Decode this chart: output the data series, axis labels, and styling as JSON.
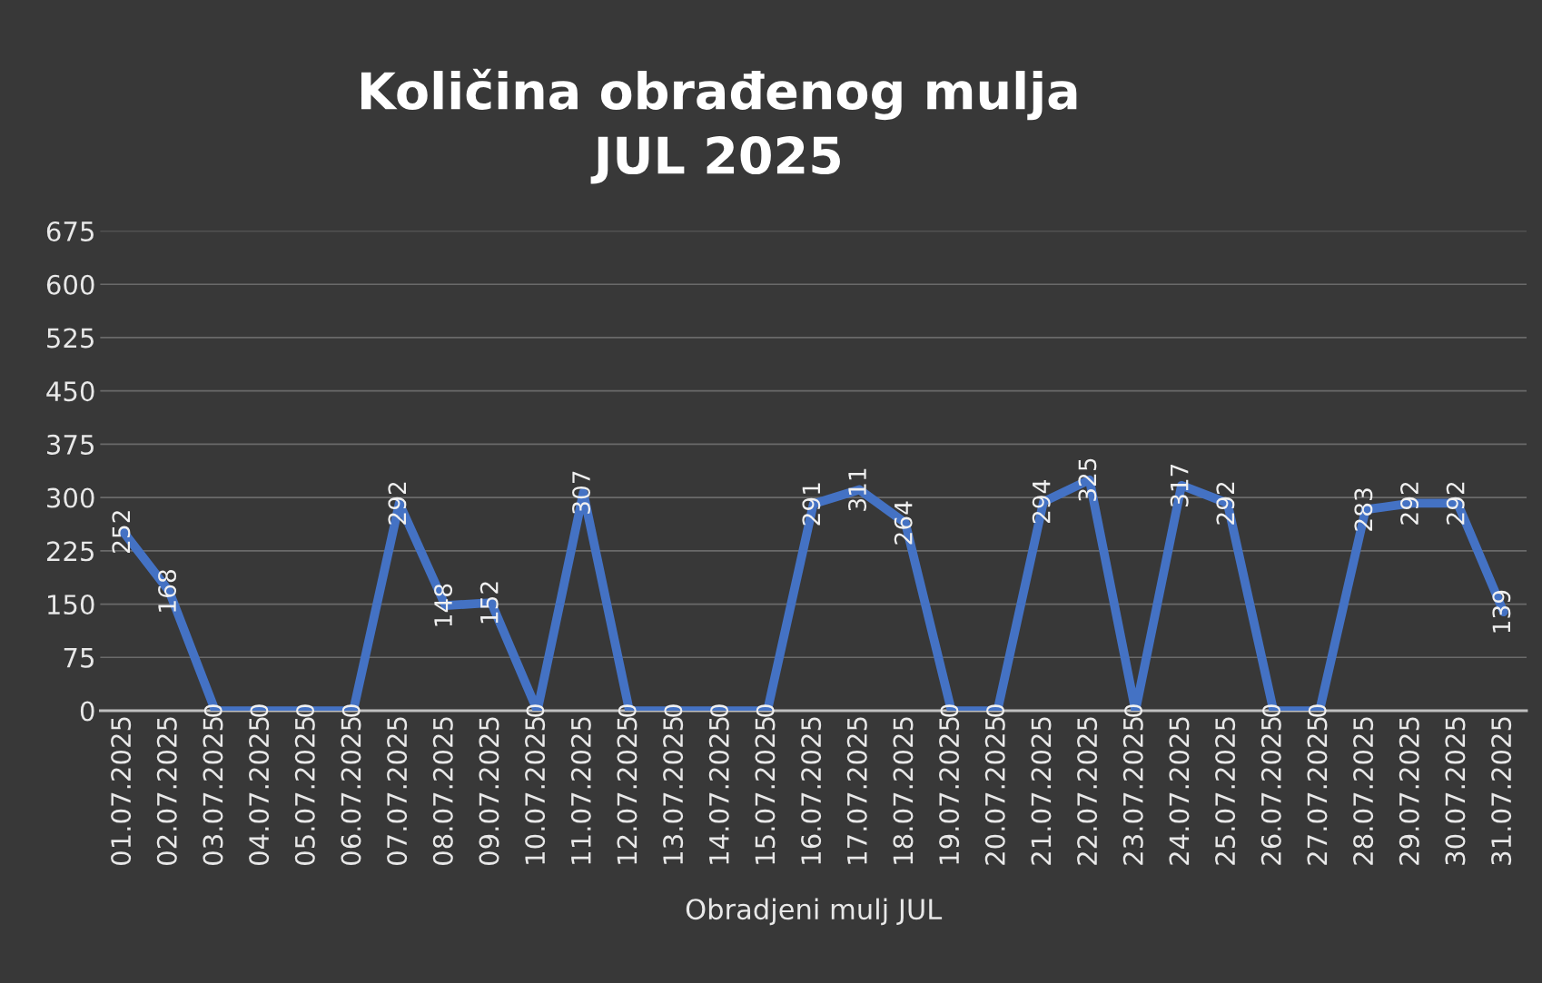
{
  "chart_data": {
    "type": "line",
    "title": "Količina obrađenog mulja\nJUL 2025",
    "xlabel": "Obradjeni mulj JUL",
    "categories": [
      "01.07.2025",
      "02.07.2025",
      "03.07.2025",
      "04.07.2025",
      "05.07.2025",
      "06.07.2025",
      "07.07.2025",
      "08.07.2025",
      "09.07.2025",
      "10.07.2025",
      "11.07.2025",
      "12.07.2025",
      "13.07.2025",
      "14.07.2025",
      "15.07.2025",
      "16.07.2025",
      "17.07.2025",
      "18.07.2025",
      "19.07.2025",
      "20.07.2025",
      "21.07.2025",
      "22.07.2025",
      "23.07.2025",
      "24.07.2025",
      "25.07.2025",
      "26.07.2025",
      "27.07.2025",
      "28.07.2025",
      "29.07.2025",
      "30.07.2025",
      "31.07.2025"
    ],
    "series": [
      {
        "color": "#4472c4",
        "values": [
          252,
          168,
          0,
          0,
          0,
          0,
          292,
          148,
          152,
          0,
          307,
          0,
          0,
          0,
          0,
          291,
          311,
          264,
          0,
          0,
          294,
          325,
          0,
          317,
          292,
          0,
          0,
          283,
          292,
          292,
          139
        ]
      }
    ],
    "ylim": [
      0,
      675
    ],
    "yticks": [
      0,
      75,
      150,
      225,
      300,
      375,
      450,
      525,
      600,
      675
    ],
    "grid": "y",
    "data_labels": true,
    "marker": "none",
    "line_style": "solid"
  }
}
